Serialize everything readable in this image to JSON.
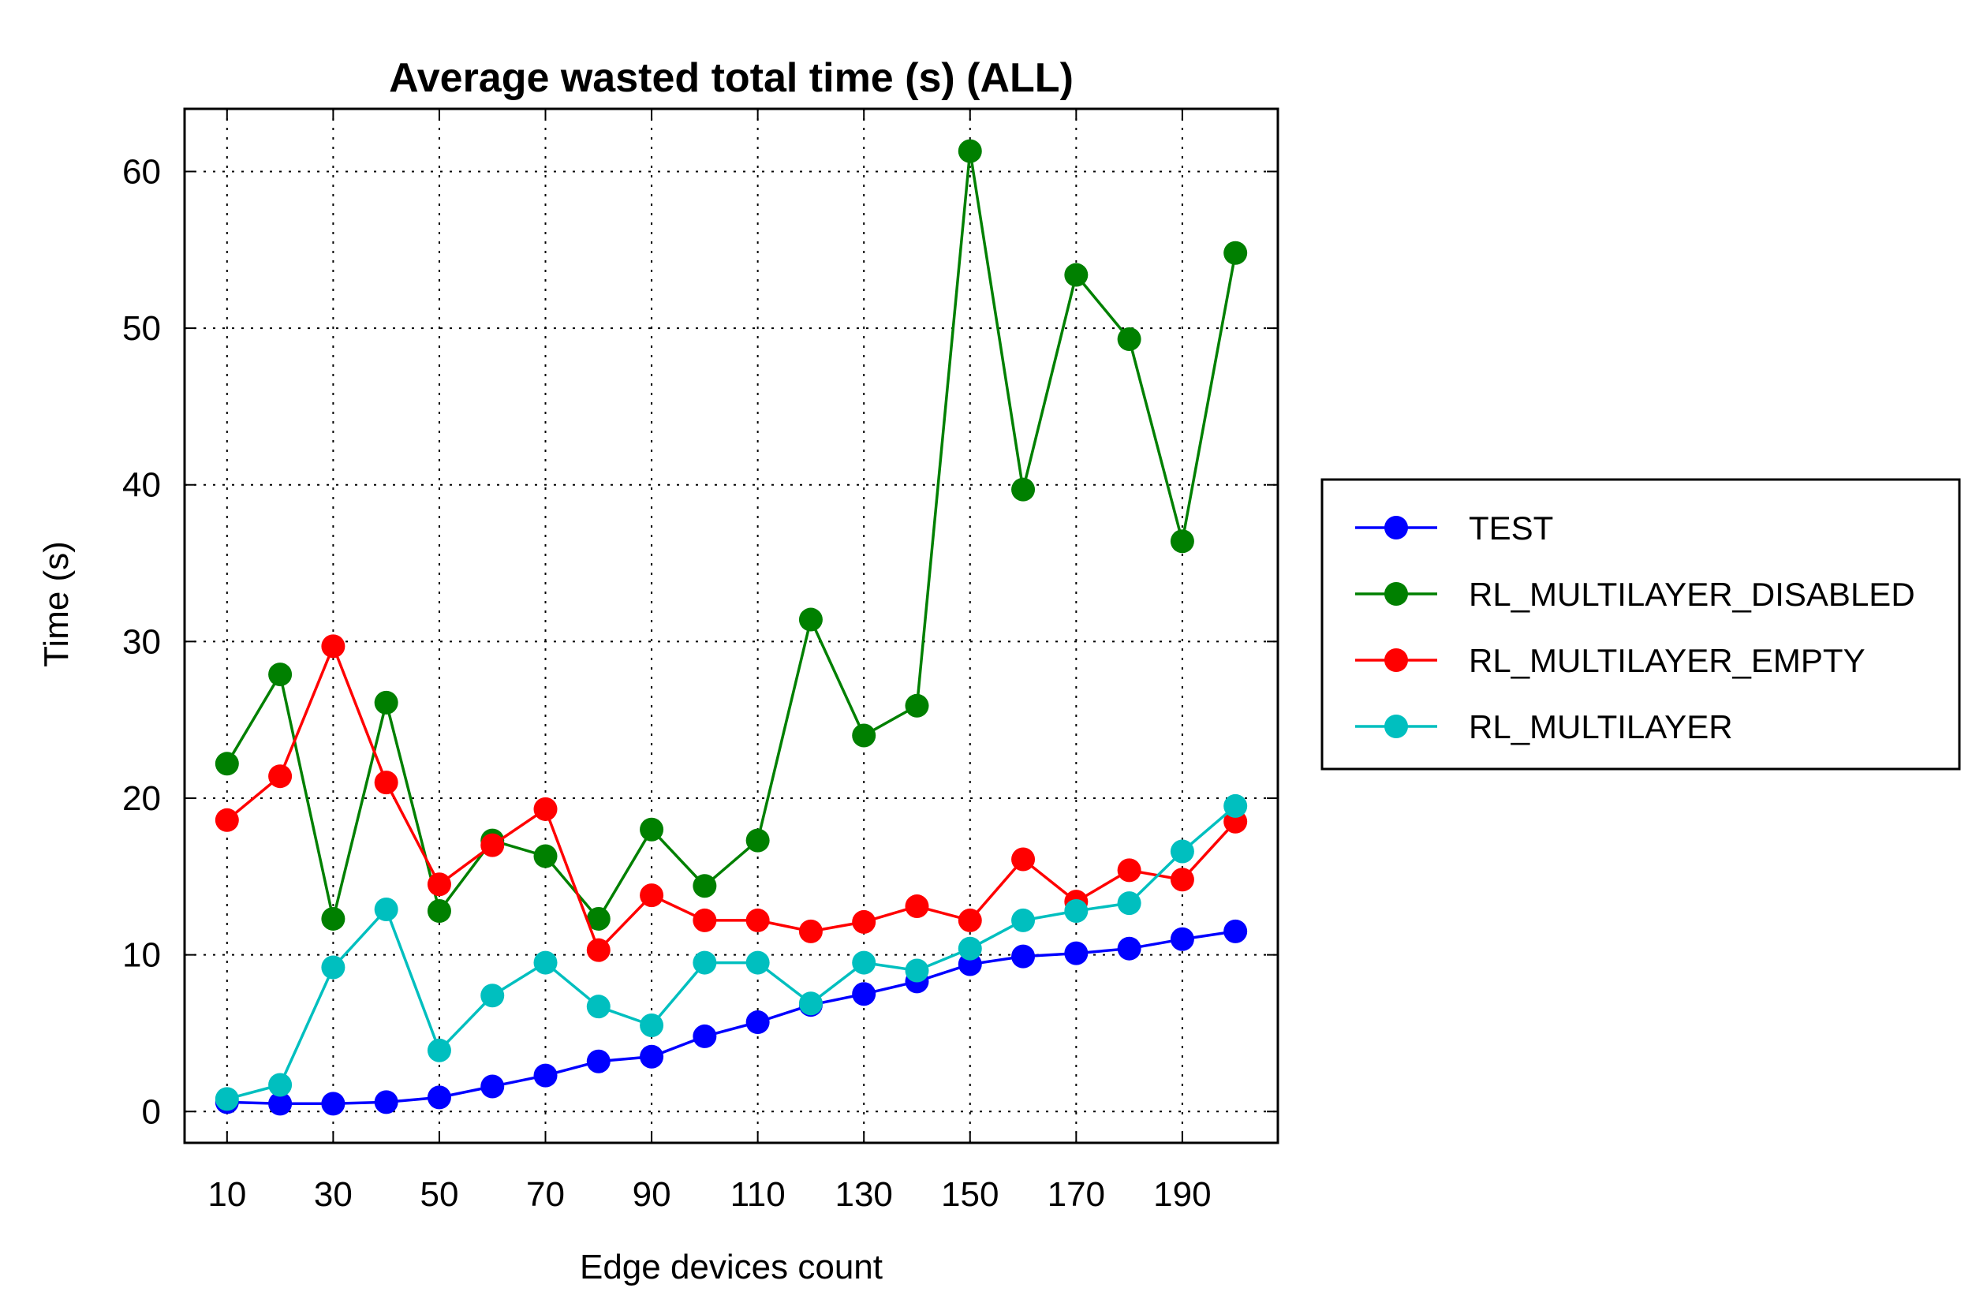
{
  "chart_data": {
    "type": "line",
    "title": "Average wasted total time (s) (ALL)",
    "xlabel": "Edge devices count",
    "ylabel": "Time (s)",
    "xlim": [
      2,
      208
    ],
    "ylim": [
      -2,
      64
    ],
    "x": [
      10,
      20,
      30,
      40,
      50,
      60,
      70,
      80,
      90,
      100,
      110,
      120,
      130,
      140,
      150,
      160,
      170,
      180,
      190,
      200
    ],
    "x_ticks": [
      10,
      30,
      50,
      70,
      90,
      110,
      130,
      150,
      170,
      190
    ],
    "x_grid": [
      10,
      30,
      50,
      70,
      90,
      110,
      130,
      150,
      170,
      190
    ],
    "y_ticks": [
      0,
      10,
      20,
      30,
      40,
      50,
      60
    ],
    "grid": true,
    "legend_position": "right-outside",
    "series": [
      {
        "name": "TEST",
        "color": "#0000ff",
        "values": [
          0.6,
          0.5,
          0.5,
          0.6,
          0.9,
          1.6,
          2.3,
          3.2,
          3.5,
          4.8,
          5.7,
          6.8,
          7.5,
          8.3,
          9.4,
          9.9,
          10.1,
          10.4,
          11.0,
          11.5
        ]
      },
      {
        "name": "RL_MULTILAYER_DISABLED",
        "color": "#008000",
        "values": [
          22.2,
          27.9,
          12.3,
          26.1,
          12.8,
          17.3,
          16.3,
          12.3,
          18.0,
          14.4,
          17.3,
          31.4,
          24.0,
          25.9,
          61.3,
          39.7,
          53.4,
          49.3,
          36.4,
          54.8
        ]
      },
      {
        "name": "RL_MULTILAYER_EMPTY",
        "color": "#ff0000",
        "values": [
          18.6,
          21.4,
          29.7,
          21.0,
          14.5,
          17.0,
          19.3,
          10.3,
          13.8,
          12.2,
          12.2,
          11.5,
          12.1,
          13.1,
          12.2,
          16.1,
          13.4,
          15.4,
          14.8,
          18.5
        ]
      },
      {
        "name": "RL_MULTILAYER",
        "color": "#00bfbf",
        "values": [
          0.8,
          1.7,
          9.2,
          12.9,
          3.9,
          7.4,
          9.5,
          6.7,
          5.5,
          9.5,
          9.5,
          6.9,
          9.5,
          9.0,
          10.4,
          12.2,
          12.8,
          13.3,
          16.6,
          19.5
        ]
      }
    ]
  }
}
